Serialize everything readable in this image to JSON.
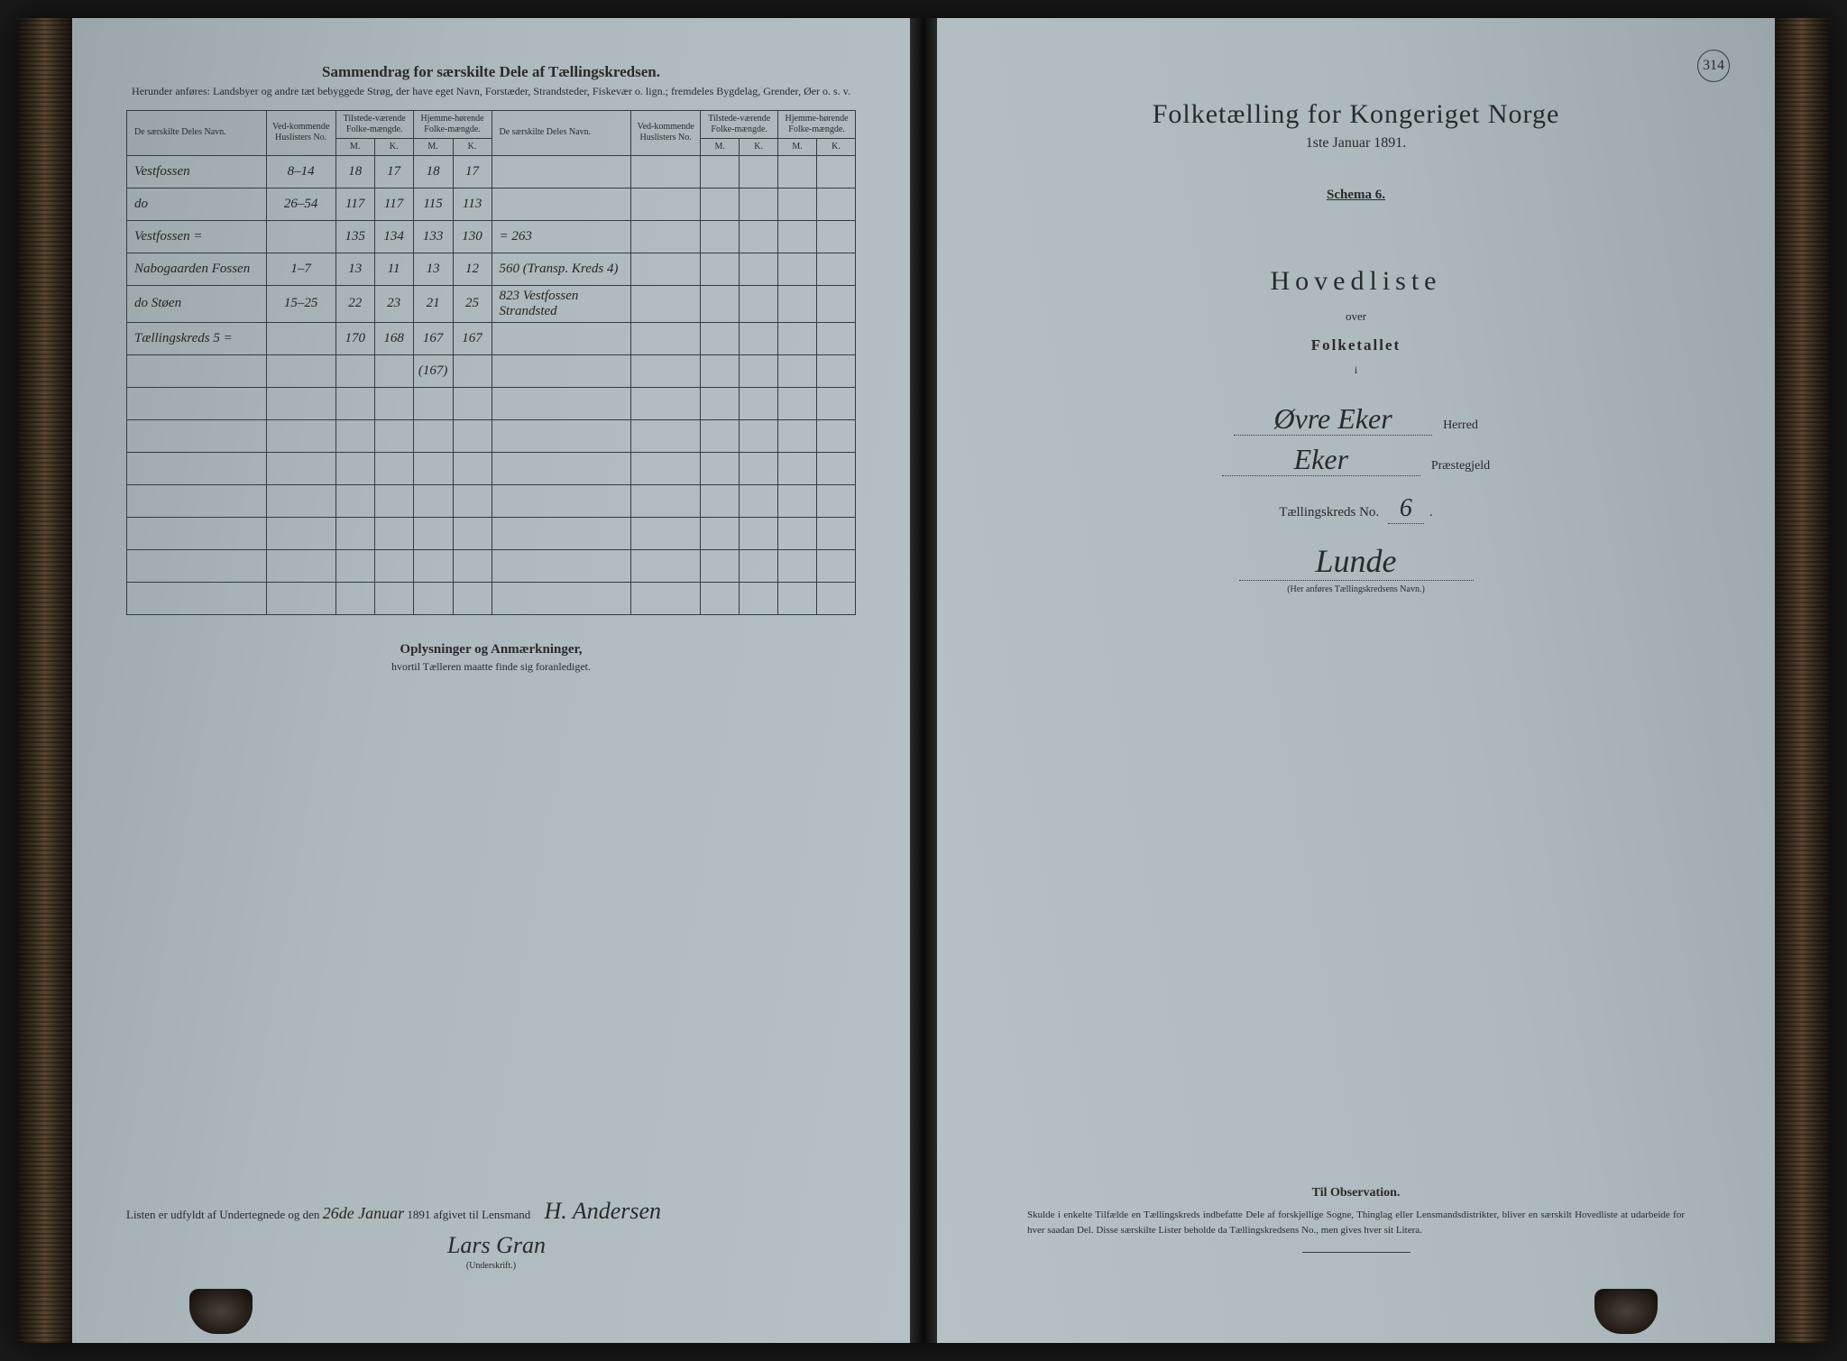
{
  "page_number": "314",
  "left": {
    "title": "Sammendrag for særskilte Dele af Tællingskredsen.",
    "subtitle": "Herunder anføres: Landsbyer og andre tæt bebyggede Strøg, der have eget Navn, Forstæder, Strandsteder, Fiskevær o. lign.; fremdeles Bygdelag, Grender, Øer o. s. v.",
    "headers": {
      "name": "De særskilte Deles Navn.",
      "huslister": "Ved-kommende Huslisters No.",
      "tilstede": "Tilstede-værende Folke-mængde.",
      "hjemme": "Hjemme-hørende Folke-mængde.",
      "m": "M.",
      "k": "K."
    },
    "rows": [
      {
        "name": "Vestfossen",
        "no": "8–14",
        "tm": "18",
        "tk": "17",
        "hm": "18",
        "hk": "17",
        "name2": "",
        "no2": "",
        "tm2": "",
        "tk2": "",
        "hm2": "",
        "hk2": ""
      },
      {
        "name": "do",
        "no": "26–54",
        "tm": "117",
        "tk": "117",
        "hm": "115",
        "hk": "113",
        "name2": "",
        "no2": "",
        "tm2": "",
        "tk2": "",
        "hm2": "",
        "hk2": ""
      },
      {
        "name": "Vestfossen =",
        "no": "",
        "tm": "135",
        "tk": "134",
        "hm": "133",
        "hk": "130",
        "name2": "= 263",
        "no2": "",
        "tm2": "",
        "tk2": "",
        "hm2": "",
        "hk2": ""
      },
      {
        "name": "Nabogaarden Fossen",
        "no": "1–7",
        "tm": "13",
        "tk": "11",
        "hm": "13",
        "hk": "12",
        "name2": "560 (Transp. Kreds 4)",
        "no2": "",
        "tm2": "",
        "tk2": "",
        "hm2": "",
        "hk2": ""
      },
      {
        "name": "do Støen",
        "no": "15–25",
        "tm": "22",
        "tk": "23",
        "hm": "21",
        "hk": "25",
        "name2": "823  Vestfossen Strandsted",
        "no2": "",
        "tm2": "",
        "tk2": "",
        "hm2": "",
        "hk2": ""
      },
      {
        "name": "Tællingskreds 5 =",
        "no": "",
        "tm": "170",
        "tk": "168",
        "hm": "167",
        "hk": "167",
        "name2": "",
        "no2": "",
        "tm2": "",
        "tk2": "",
        "hm2": "",
        "hk2": ""
      },
      {
        "name": "",
        "no": "",
        "tm": "",
        "tk": "",
        "hm": "(167)",
        "hk": "",
        "name2": "",
        "no2": "",
        "tm2": "",
        "tk2": "",
        "hm2": "",
        "hk2": ""
      }
    ],
    "empty_rows": 7,
    "remarks_title": "Oplysninger og Anmærkninger,",
    "remarks_sub": "hvortil Tælleren maatte finde sig foranlediget.",
    "footer_text": "Listen er udfyldt af Undertegnede og den",
    "footer_date": "26de Januar",
    "footer_year": "1891 afgivet til Lensmand",
    "lensmand": "H. Andersen",
    "signature": "Lars Gran",
    "underskrift_label": "(Underskrift.)"
  },
  "right": {
    "title": "Folketælling for Kongeriget Norge",
    "date": "1ste Januar 1891.",
    "schema": "Schema 6.",
    "hovedliste": "Hovedliste",
    "over": "over",
    "folketallet": "Folketallet",
    "i": "i",
    "herred_value": "Øvre Eker",
    "herred_label": "Herred",
    "praestegjeld_value": "Eker",
    "praestegjeld_label": "Præstegjeld",
    "kreds_label": "Tællingskreds No.",
    "kreds_no": "6",
    "kreds_name": "Lunde",
    "kreds_sub": "(Her anføres Tællingskredsens Navn.)",
    "obs_title": "Til Observation.",
    "obs_text": "Skulde i enkelte Tilfælde en Tællingskreds indbefatte Dele af forskjellige Sogne, Thinglag eller Lensmandsdistrikter, bliver en særskilt Hovedliste at udarbeide for hver saadan Del. Disse særskilte Lister beholde da Tællingskredsens No., men gives hver sit Litera."
  },
  "colors": {
    "paper": "#adb9bd",
    "ink": "#2a2a2a",
    "handwriting": "#2a2520",
    "border": "#3a3a3a"
  }
}
